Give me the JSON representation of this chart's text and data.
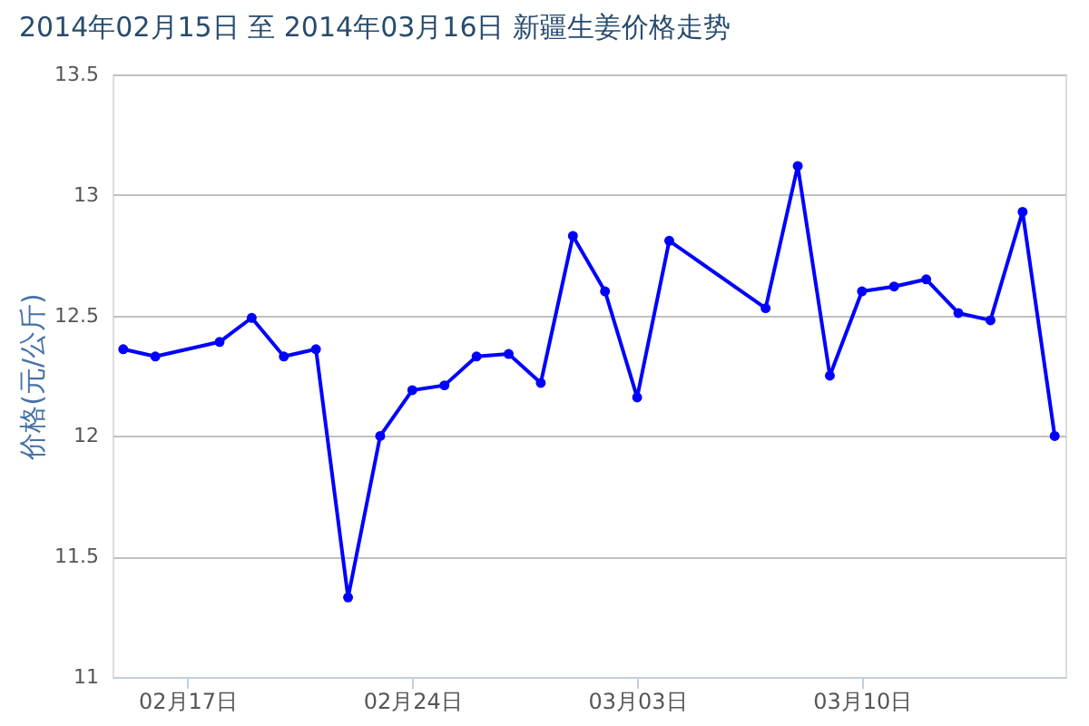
{
  "chart_data": {
    "type": "line",
    "title": "2014年02月15日 至 2014年03月16日 新疆生姜价格走势",
    "ylabel": "价格(元/公斤)",
    "x": [
      "2014-02-15",
      "2014-02-16",
      "2014-02-18",
      "2014-02-19",
      "2014-02-20",
      "2014-02-21",
      "2014-02-22",
      "2014-02-23",
      "2014-02-24",
      "2014-02-25",
      "2014-02-26",
      "2014-02-27",
      "2014-02-28",
      "2014-03-01",
      "2014-03-02",
      "2014-03-03",
      "2014-03-04",
      "2014-03-07",
      "2014-03-08",
      "2014-03-09",
      "2014-03-10",
      "2014-03-11",
      "2014-03-12",
      "2014-03-13",
      "2014-03-14",
      "2014-03-15",
      "2014-03-16"
    ],
    "series": [
      {
        "color": "#0000ff",
        "values": [
          12.36,
          12.33,
          12.39,
          12.49,
          12.33,
          12.36,
          11.33,
          12.0,
          12.19,
          12.21,
          12.33,
          12.34,
          12.22,
          12.83,
          12.6,
          12.16,
          12.81,
          12.53,
          13.12,
          12.25,
          12.6,
          12.62,
          12.65,
          12.51,
          12.48,
          12.93,
          12.0
        ]
      }
    ],
    "xlim": [
      "2014-02-14T16:00",
      "2014-03-16T08:00"
    ],
    "xticks": [
      {
        "value": "2014-02-17",
        "label": "02月17日"
      },
      {
        "value": "2014-02-24",
        "label": "02月24日"
      },
      {
        "value": "2014-03-03",
        "label": "03月03日"
      },
      {
        "value": "2014-03-10",
        "label": "03月10日"
      }
    ],
    "ylim": [
      11,
      13.5
    ],
    "yticks": [
      11,
      11.5,
      12,
      12.5,
      13,
      13.5
    ],
    "grid": "y",
    "marker": "circle",
    "line_style": "solid",
    "legend": false
  }
}
